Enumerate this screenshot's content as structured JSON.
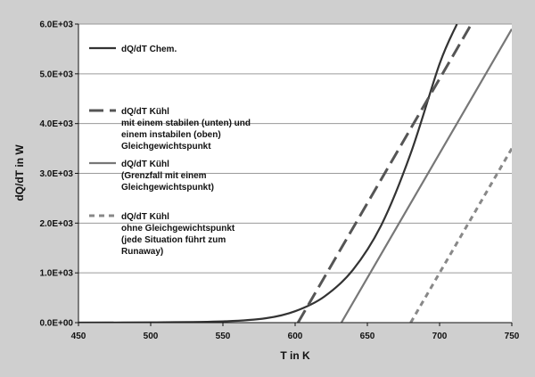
{
  "chart_data": {
    "type": "line",
    "xlabel": "T in K",
    "ylabel": "dQ/dT in W",
    "xlim": [
      450,
      750
    ],
    "ylim": [
      0,
      6000
    ],
    "x_ticks": [
      "450",
      "500",
      "550",
      "600",
      "650",
      "700",
      "750"
    ],
    "y_ticks": [
      "0.0E+00",
      "1.0E+03",
      "2.0E+03",
      "3.0E+03",
      "4.0E+03",
      "5.0E+03",
      "6.0E+03"
    ],
    "grid": "horizontal",
    "legend_position": "top-left",
    "colors": {
      "plot_bg": "#ffffff",
      "page_bg": "#cfcfcf",
      "grid": "#9a9a9a",
      "chem": "#333333",
      "kuehl": "#555555",
      "kuehl_grenz": "#777777",
      "kuehl_runaway": "#888888"
    },
    "series": [
      {
        "name": "dQ/dT Chem.",
        "style": "solid",
        "x": [
          450,
          500,
          550,
          580,
          600,
          620,
          640,
          660,
          680,
          700,
          712
        ],
        "y": [
          0,
          5,
          25,
          90,
          230,
          520,
          1060,
          1980,
          3400,
          5200,
          6000
        ]
      },
      {
        "name": "dQ/dT Kühl",
        "legend_lines": [
          "dQ/dT Kühl",
          "mit einem stabilen (unten) und",
          "einem instabilen (oben)",
          "Gleichgewichtspunkt"
        ],
        "style": "long-dash",
        "x": [
          602,
          722
        ],
        "y": [
          0,
          6000
        ]
      },
      {
        "name": "dQ/dT Kühl",
        "legend_lines": [
          "dQ/dT Kühl",
          "(Grenzfall mit einem",
          "Gleichgewichtspunkt)"
        ],
        "style": "solid",
        "x": [
          632,
          750
        ],
        "y": [
          0,
          5900
        ]
      },
      {
        "name": "dQ/dT Kühl",
        "legend_lines": [
          "dQ/dT Kühl",
          "ohne Gleichgewichtspunkt",
          "(jede Situation führt zum",
          "Runaway)"
        ],
        "style": "short-dash",
        "x": [
          680,
          750
        ],
        "y": [
          0,
          3500
        ]
      }
    ]
  }
}
